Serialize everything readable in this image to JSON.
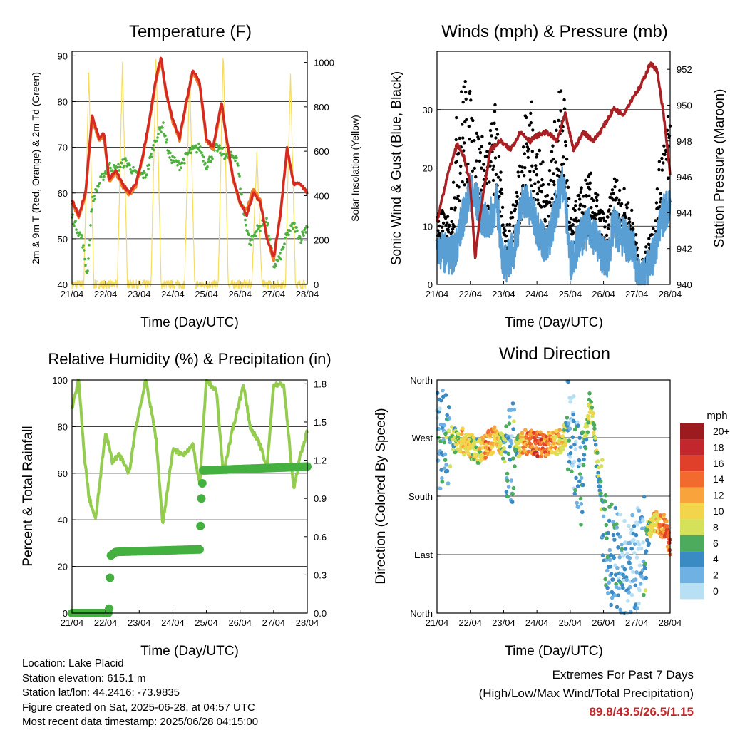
{
  "colors": {
    "temp_2m": "#d42a22",
    "temp_9m": "#f07a28",
    "dewpoint": "#4caf3e",
    "solar": "#f6dc5a",
    "gust": "#000000",
    "wind": "#5a9fd4",
    "pressure": "#a82024",
    "rh": "#93cc4e",
    "precip": "#44b040"
  },
  "x_ticks": [
    "21/04",
    "22/04",
    "23/04",
    "24/04",
    "25/04",
    "26/04",
    "27/04",
    "28/04"
  ],
  "panels": {
    "temperature": {
      "title": "Temperature (F)",
      "xlabel": "Time (Day/UTC)",
      "ylabel_left": "2m & 9m T (Red, Orange) & 2m Td (Green)",
      "ylabel_right": "Solar Insolation (Yellow)"
    },
    "winds": {
      "title": "Winds (mph) & Pressure (mb)",
      "xlabel": "Time (Day/UTC)",
      "ylabel_left": "Sonic Wind & Gust (Blue, Black)",
      "ylabel_right": "Station Pressure (Maroon)"
    },
    "humidity": {
      "title": "Relative Humidity (%) & Precipitation (in)",
      "xlabel": "Time (Day/UTC)",
      "ylabel_left": "Percent & Total Rainfall"
    },
    "direction": {
      "title": "Wind Direction",
      "xlabel": "Time (Day/UTC)",
      "ylabel_left": "Direction (Colored By Speed)",
      "colorbar_title": "mph",
      "colorbar_labels": [
        "20+",
        "18",
        "16",
        "14",
        "12",
        "10",
        "8",
        "6",
        "4",
        "2",
        "0"
      ],
      "colorbar_colors": [
        "#9b1b1e",
        "#c1272d",
        "#e0402a",
        "#f26a2e",
        "#f9a33c",
        "#f2d54a",
        "#d6e15a",
        "#4cab5c",
        "#3a8ac4",
        "#6fb1e2",
        "#b8e0f4"
      ]
    }
  },
  "footer": {
    "location": "Location: Lake Placid",
    "elevation": "Station elevation: 615.1 m",
    "latlon": "Station lat/lon: 44.2416; -73.9835",
    "created": "Figure created on Sat, 2025-06-28, at 04:57 UTC",
    "timestamp": "Most recent data timestamp: 2025/06/28 04:15:00"
  },
  "extremes": {
    "title": "Extremes For Past 7 Days",
    "subtitle": "(High/Low/Max Wind/Total Precipitation)",
    "values": "89.8/43.5/26.5/1.15"
  },
  "chart_data": [
    {
      "type": "line",
      "title": "Temperature (F)",
      "xlabel": "Time (Day/UTC)",
      "ylabel": "2m & 9m T (Red, Orange) & 2m Td (Green)",
      "y2label": "Solar Insolation (Yellow)",
      "xlim": [
        21,
        28
      ],
      "ylim": [
        40,
        91
      ],
      "y_ticks": [
        40,
        50,
        60,
        70,
        80,
        90
      ],
      "y2lim": [
        0,
        1050
      ],
      "y2_ticks": [
        0,
        200,
        400,
        600,
        800,
        1000
      ],
      "series": [
        {
          "x": [
            21.0,
            21.2,
            21.4,
            21.6,
            21.8,
            21.95,
            22.1,
            22.3,
            22.5,
            22.7,
            22.9,
            23.1,
            23.3,
            23.5,
            23.65,
            23.8,
            24.0,
            24.2,
            24.4,
            24.6,
            24.8,
            25.0,
            25.2,
            25.45,
            25.6,
            25.8,
            26.0,
            26.2,
            26.4,
            26.6,
            26.8,
            27.0,
            27.2,
            27.4,
            27.6,
            27.8,
            28.0
          ],
          "values": [
            58.5,
            55,
            60,
            77,
            72,
            73,
            63,
            65,
            62,
            60,
            62,
            68,
            76,
            85,
            89.8,
            82,
            76,
            72,
            80,
            87,
            84,
            72,
            70,
            80,
            72,
            63,
            58,
            55,
            60,
            58,
            50,
            46,
            55,
            70,
            62,
            62,
            60
          ]
        },
        {
          "x": [
            21.0,
            21.2,
            21.4,
            21.6,
            21.8,
            21.95,
            22.1,
            22.3,
            22.5,
            22.7,
            22.9,
            23.1,
            23.3,
            23.5,
            23.65,
            23.8,
            24.0,
            24.2,
            24.4,
            24.6,
            24.8,
            25.0,
            25.2,
            25.45,
            25.6,
            25.8,
            26.0,
            26.2,
            26.4,
            26.6,
            26.8,
            27.0,
            27.2,
            27.4,
            27.6,
            27.8,
            28.0
          ],
          "values": [
            58,
            54.5,
            59.5,
            76,
            71.5,
            72.5,
            62.5,
            64.5,
            61.5,
            59.5,
            61.5,
            67.5,
            75.5,
            84.5,
            89,
            81.5,
            75.5,
            71.5,
            79.5,
            86.5,
            83.5,
            71.5,
            69.5,
            79.5,
            71.5,
            62.5,
            57.5,
            56.5,
            61,
            58.5,
            50.5,
            45,
            55.5,
            69.5,
            62,
            62,
            60
          ]
        },
        {
          "x": [
            21.0,
            21.1,
            21.3,
            21.45,
            21.6,
            21.8,
            21.95,
            22.1,
            22.3,
            22.6,
            22.9,
            23.2,
            23.5,
            23.7,
            23.9,
            24.2,
            24.5,
            24.8,
            25.0,
            25.3,
            25.6,
            25.9,
            26.1,
            26.3,
            26.5,
            26.8,
            27.0,
            27.2,
            27.4,
            27.6,
            27.8,
            28.0
          ],
          "values": [
            55,
            53,
            50,
            42,
            58,
            62,
            64,
            66,
            65,
            67,
            64,
            64,
            72,
            75,
            68,
            66,
            69,
            70,
            66,
            70,
            68,
            68,
            56,
            49,
            52,
            54,
            44,
            46,
            51,
            53,
            50,
            53
          ]
        },
        {
          "x": [
            21.0,
            21.35,
            21.5,
            21.65,
            22.0,
            22.35,
            22.5,
            22.65,
            23.0,
            23.35,
            23.5,
            23.65,
            24.0,
            24.35,
            24.5,
            24.65,
            25.0,
            25.35,
            25.5,
            25.65,
            26.0,
            26.35,
            26.5,
            26.65,
            27.0,
            27.35,
            27.5,
            27.65,
            28.0
          ],
          "values": [
            0,
            0,
            950,
            0,
            0,
            0,
            1000,
            0,
            0,
            0,
            1020,
            0,
            0,
            0,
            950,
            0,
            0,
            0,
            1050,
            0,
            0,
            0,
            600,
            0,
            0,
            0,
            950,
            0,
            0
          ]
        }
      ]
    },
    {
      "type": "line",
      "title": "Winds (mph) & Pressure (mb)",
      "xlabel": "Time (Day/UTC)",
      "ylabel": "Sonic Wind & Gust (Blue, Black)",
      "y2label": "Station Pressure (Maroon)",
      "xlim": [
        21,
        28
      ],
      "ylim": [
        0,
        40
      ],
      "y_ticks": [
        0,
        10,
        20,
        30
      ],
      "y2lim": [
        940,
        953
      ],
      "y2_ticks": [
        940,
        942,
        944,
        946,
        948,
        950,
        952
      ],
      "series": [
        {
          "x": [
            21.0,
            21.5,
            21.8,
            22.0,
            22.2,
            22.5,
            22.8,
            23.0,
            23.3,
            23.6,
            23.8,
            24.0,
            24.3,
            24.6,
            24.8,
            25.0,
            25.3,
            25.6,
            25.9,
            26.1,
            26.3,
            26.6,
            26.9,
            27.1,
            27.5,
            27.8,
            28.0
          ],
          "values": [
            6,
            5,
            12,
            16,
            14,
            10,
            14,
            3,
            6,
            15,
            13,
            10,
            6,
            14,
            18,
            4,
            8,
            10,
            6,
            4,
            10,
            8,
            6,
            0,
            5,
            12,
            14
          ]
        },
        {
          "x": [
            21.0,
            21.4,
            21.6,
            21.8,
            22.0,
            22.2,
            22.5,
            22.8,
            23.0,
            23.3,
            23.6,
            23.8,
            24.0,
            24.3,
            24.6,
            24.8,
            25.0,
            25.3,
            25.6,
            25.9,
            26.1,
            26.3,
            26.6,
            26.9,
            27.1,
            27.5,
            27.8,
            28.0
          ],
          "values": [
            10,
            8,
            22,
            26,
            24,
            20,
            17,
            24,
            7,
            10,
            21,
            24,
            18,
            13,
            22,
            26.5,
            8,
            12,
            14,
            10,
            8,
            14,
            12,
            9,
            2,
            8,
            20,
            22
          ]
        },
        {
          "x": [
            21.0,
            21.3,
            21.6,
            21.8,
            22.0,
            22.15,
            22.3,
            22.6,
            22.9,
            23.2,
            23.5,
            23.8,
            24.0,
            24.3,
            24.6,
            24.85,
            25.1,
            25.4,
            25.7,
            26.0,
            26.3,
            26.6,
            26.9,
            27.1,
            27.4,
            27.6,
            27.8,
            28.0
          ],
          "values": [
            943.5,
            946,
            947.8,
            947.2,
            945.5,
            941.5,
            944,
            947.5,
            948,
            947.5,
            948.5,
            948,
            948.3,
            948.5,
            948,
            949.5,
            947.5,
            948.5,
            948,
            948.8,
            949.8,
            949.5,
            950.5,
            951,
            952.3,
            952,
            949.5,
            946.2
          ]
        }
      ]
    },
    {
      "type": "line",
      "title": "Relative Humidity (%) & Precipitation (in)",
      "xlabel": "Time (Day/UTC)",
      "ylabel": "Percent & Total Rainfall",
      "xlim": [
        21,
        28
      ],
      "ylim": [
        0,
        100
      ],
      "y_ticks": [
        0,
        20,
        40,
        60,
        80,
        100
      ],
      "y2lim": [
        0,
        1.83
      ],
      "y2_ticks": [
        0.0,
        0.3,
        0.6,
        0.9,
        1.2,
        1.5,
        1.8
      ],
      "series": [
        {
          "x": [
            21.0,
            21.2,
            21.35,
            21.5,
            21.7,
            22.0,
            22.2,
            22.4,
            22.7,
            22.9,
            23.2,
            23.5,
            23.7,
            24.0,
            24.3,
            24.6,
            24.8,
            25.0,
            25.3,
            25.5,
            25.8,
            26.1,
            26.3,
            26.6,
            26.8,
            27.0,
            27.3,
            27.6,
            27.8,
            28.0
          ],
          "values": [
            88,
            100,
            70,
            50,
            40,
            78,
            65,
            68,
            60,
            80,
            100,
            75,
            38,
            70,
            68,
            72,
            55,
            100,
            95,
            60,
            80,
            98,
            80,
            72,
            62,
            98,
            98,
            53,
            68,
            78
          ]
        },
        {
          "x": [
            21.0,
            22.1,
            22.15,
            22.3,
            24.8,
            24.85,
            24.9,
            28.0
          ],
          "values": [
            0.0,
            0.0,
            0.45,
            0.48,
            0.5,
            0.9,
            1.12,
            1.15
          ]
        }
      ]
    },
    {
      "type": "scatter",
      "title": "Wind Direction",
      "xlabel": "Time (Day/UTC)",
      "ylabel": "Direction (Colored By Speed)",
      "xlim": [
        21,
        28
      ],
      "y_ticks": [
        "North",
        "East",
        "South",
        "West",
        "North"
      ],
      "colorbar": "mph",
      "series": [
        {
          "x": [
            21.1,
            21.4,
            21.8,
            22.2,
            22.5,
            22.8,
            23.2,
            23.6,
            24.0,
            24.4,
            24.8,
            25.0,
            25.3,
            25.6,
            26.1,
            26.4,
            26.7,
            27.1,
            27.5,
            27.8,
            28.0
          ],
          "directions": [
            270,
            270,
            265,
            250,
            260,
            270,
            240,
            265,
            260,
            260,
            270,
            300,
            200,
            330,
            100,
            80,
            60,
            90,
            145,
            135,
            110
          ],
          "speeds": [
            4,
            6,
            12,
            8,
            14,
            12,
            3,
            12,
            16,
            14,
            10,
            3,
            4,
            10,
            4,
            5,
            3,
            2,
            11,
            14,
            16
          ]
        }
      ]
    }
  ]
}
